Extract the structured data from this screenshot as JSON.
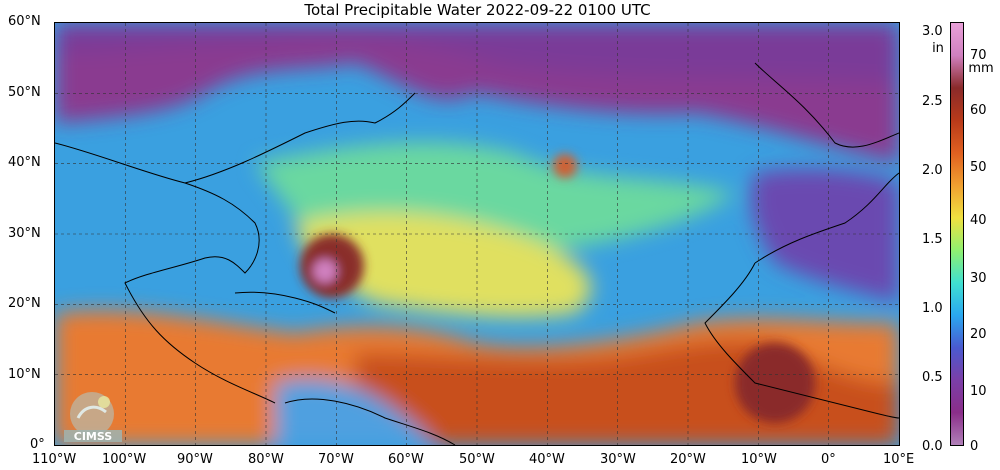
{
  "title": "Total Precipitable Water  2022-09-22 0100 UTC",
  "map": {
    "lat_ticks": [
      "60°N",
      "50°N",
      "40°N",
      "30°N",
      "20°N",
      "10°N",
      "0°"
    ],
    "lon_ticks": [
      "110°W",
      "100°W",
      "90°W",
      "80°W",
      "70°W",
      "60°W",
      "50°W",
      "40°W",
      "30°W",
      "20°W",
      "10°W",
      "0°",
      "10°E"
    ],
    "lon_range": [
      -110,
      10
    ],
    "lat_range": [
      0,
      60
    ]
  },
  "colorbar": {
    "inch_ticks": [
      "3.0",
      "2.5",
      "2.0",
      "1.5",
      "1.0",
      "0.5",
      "0.0"
    ],
    "inch_unit": "in",
    "mm_ticks": [
      "70",
      "60",
      "50",
      "40",
      "30",
      "20",
      "10",
      "0"
    ],
    "mm_unit": "mm",
    "colors": [
      "#b080b8",
      "#8a2e8a",
      "#7b3fa8",
      "#4a5ad0",
      "#2aa8f0",
      "#40e0d0",
      "#90f070",
      "#f0e040",
      "#f0a030",
      "#e06020",
      "#b83a1a",
      "#8a2a2a",
      "#d080c0",
      "#e8a0d8"
    ]
  },
  "logo": {
    "text": "CIMSS"
  }
}
